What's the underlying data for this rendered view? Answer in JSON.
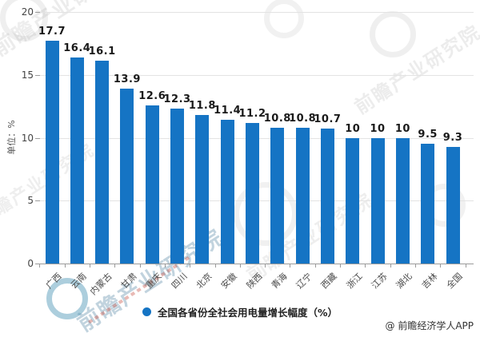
{
  "chart_data": {
    "type": "bar",
    "title": "",
    "unit_label": "单位：%",
    "categories": [
      "广西",
      "云南",
      "内蒙古",
      "甘肃",
      "重庆",
      "四川",
      "北京",
      "安徽",
      "陕西",
      "青海",
      "辽宁",
      "西藏",
      "浙江",
      "江苏",
      "湖北",
      "吉林",
      "全国"
    ],
    "values": [
      17.7,
      16.4,
      16.1,
      13.9,
      12.6,
      12.3,
      11.8,
      11.4,
      11.2,
      10.8,
      10.8,
      10.7,
      10,
      10,
      10,
      9.5,
      9.3
    ],
    "ylim": [
      0,
      20
    ],
    "yticks": [
      0,
      5,
      10,
      15,
      20
    ],
    "grid": true,
    "bar_color": "#1574C4",
    "legend": {
      "label": "全国各省份全社会用电量增长幅度（%）",
      "position": "bottom",
      "marker_color": "#1574C4"
    }
  },
  "watermark": {
    "text": "前瞻产业研究院"
  },
  "attribution": "@ 前瞻经济学人APP"
}
